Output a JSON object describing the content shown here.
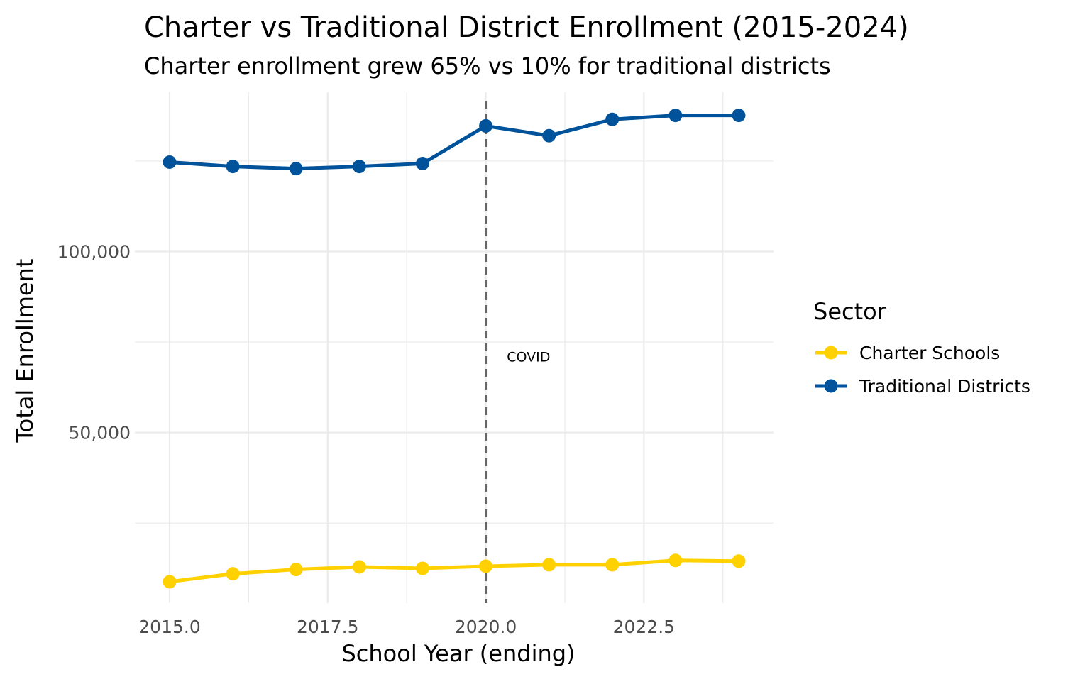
{
  "chart_data": {
    "type": "line",
    "title": "Charter vs Traditional District Enrollment (2015-2024)",
    "subtitle": "Charter enrollment grew 65% vs 10% for traditional districts",
    "xlabel": "School Year (ending)",
    "ylabel": "Total Enrollment",
    "xlim": [
      2014.45,
      2024.55
    ],
    "ylim": [
      2900,
      144000
    ],
    "x_ticks": [
      2015.0,
      2017.5,
      2020.0,
      2022.5
    ],
    "x_tick_labels": [
      "2015.0",
      "2017.5",
      "2020.0",
      "2022.5"
    ],
    "y_ticks": [
      50000,
      100000
    ],
    "y_tick_labels": [
      "50,000",
      "100,000"
    ],
    "grid": true,
    "legend": {
      "title": "Sector",
      "placement": "right"
    },
    "x": [
      2015,
      2016,
      2017,
      2018,
      2019,
      2020,
      2021,
      2022,
      2023,
      2024
    ],
    "series": [
      {
        "name": "Charter Schools",
        "color": "#FFD100",
        "values": [
          8800,
          11000,
          12200,
          12900,
          12500,
          13100,
          13500,
          13500,
          14700,
          14500
        ]
      },
      {
        "name": "Traditional Districts",
        "color": "#00539B",
        "values": [
          124700,
          123500,
          122900,
          123500,
          124300,
          134700,
          132000,
          136500,
          137600,
          137600
        ]
      }
    ],
    "annotations": [
      {
        "type": "vline",
        "x": 2020,
        "style": "dashed",
        "color": "#666666"
      },
      {
        "type": "text",
        "text": "COVID",
        "x": 2020.3,
        "y": 71000
      }
    ]
  }
}
